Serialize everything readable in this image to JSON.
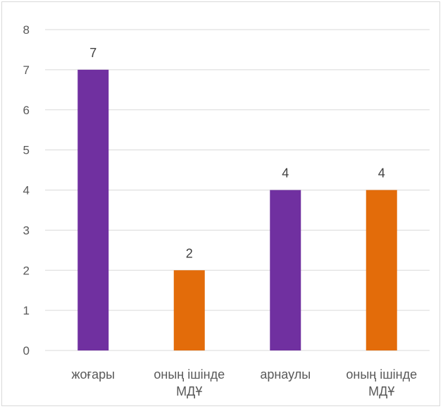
{
  "chart_data": {
    "type": "bar",
    "title": "",
    "xlabel": "",
    "ylabel": "",
    "ylim": [
      0,
      8
    ],
    "yticks": [
      0,
      1,
      2,
      3,
      4,
      5,
      6,
      7,
      8
    ],
    "grid": true,
    "legend": "none",
    "categories": [
      [
        "жоғары"
      ],
      [
        "оның ішінде",
        "МДҰ"
      ],
      [
        "арнаулы"
      ],
      [
        "оның ішінде",
        "МДҰ"
      ]
    ],
    "values": [
      7,
      2,
      4,
      4
    ],
    "bar_colors": [
      "#7030a0",
      "#e36c0a",
      "#7030a0",
      "#e36c0a"
    ],
    "data_labels": [
      "7",
      "2",
      "4",
      "4"
    ]
  },
  "colors": {
    "grid": "#d9d9d9",
    "axis": "#d9d9d9",
    "text": "#595959",
    "purple": "#7030a0",
    "orange": "#e36c0a"
  }
}
